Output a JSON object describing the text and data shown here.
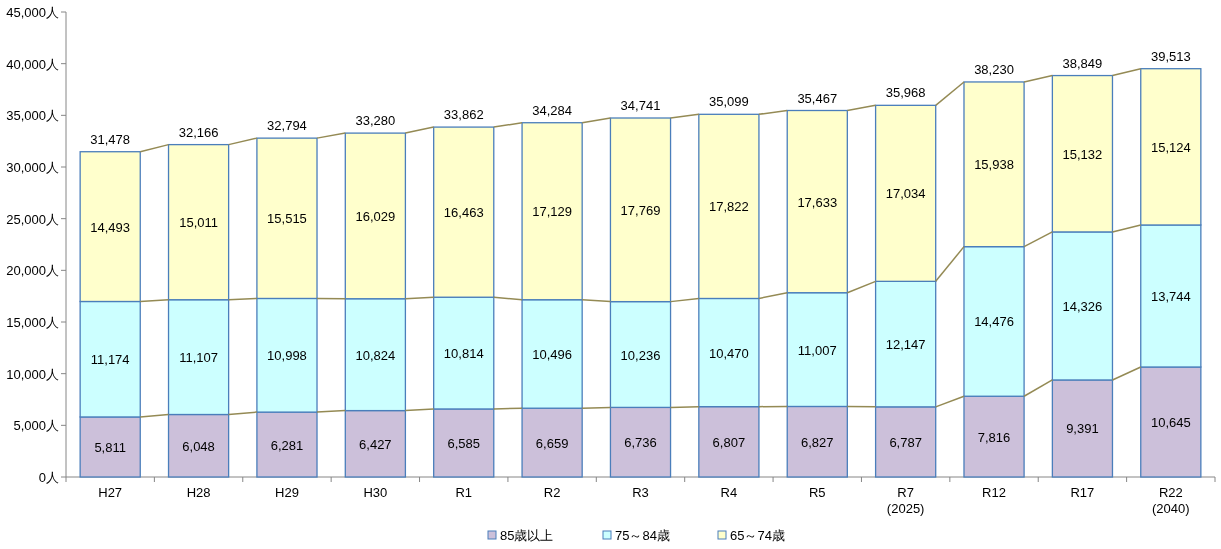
{
  "chart_data": {
    "type": "bar",
    "stacked": true,
    "legend": "bottom",
    "categories": [
      "H27",
      "H28",
      "H29",
      "H30",
      "R1",
      "R2",
      "R3",
      "R4",
      "R5",
      "R7\n(2025)",
      "R12",
      "R17",
      "R22\n(2040)"
    ],
    "series": [
      {
        "name": "85歳以上",
        "color": "#ccc0da",
        "values": [
          5811,
          6048,
          6281,
          6427,
          6585,
          6659,
          6736,
          6807,
          6827,
          6787,
          7816,
          9391,
          10645
        ],
        "value_labels": [
          "5,811",
          "6,048",
          "6,281",
          "6,427",
          "6,585",
          "6,659",
          "6,736",
          "6,807",
          "6,827",
          "6,787",
          "7,816",
          "9,391",
          "10,645"
        ]
      },
      {
        "name": "75～84歳",
        "color": "#ccffff",
        "values": [
          11174,
          11107,
          10998,
          10824,
          10814,
          10496,
          10236,
          10470,
          11007,
          12147,
          14476,
          14326,
          13744
        ],
        "value_labels": [
          "11,174",
          "11,107",
          "10,998",
          "10,824",
          "10,814",
          "10,496",
          "10,236",
          "10,470",
          "11,007",
          "12,147",
          "14,476",
          "14,326",
          "13,744"
        ]
      },
      {
        "name": "65～74歳",
        "color": "#ffffcc",
        "values": [
          14493,
          15011,
          15515,
          16029,
          16463,
          17129,
          17769,
          17822,
          17633,
          17034,
          15938,
          15132,
          15124
        ],
        "value_labels": [
          "14,493",
          "15,011",
          "15,515",
          "16,029",
          "16,463",
          "17,129",
          "17,769",
          "17,822",
          "17,633",
          "17,034",
          "15,938",
          "15,132",
          "15,124"
        ]
      }
    ],
    "totals": [
      "31,478",
      "32,166",
      "32,794",
      "33,280",
      "33,862",
      "34,284",
      "34,741",
      "35,099",
      "35,467",
      "35,968",
      "38,230",
      "38,849",
      "39,513"
    ],
    "ylim": [
      0,
      45000
    ],
    "yticks": [
      {
        "value": 0,
        "label": "0人"
      },
      {
        "value": 5000,
        "label": "5,000人"
      },
      {
        "value": 10000,
        "label": "10,000人"
      },
      {
        "value": 15000,
        "label": "15,000人"
      },
      {
        "value": 20000,
        "label": "20,000人"
      },
      {
        "value": 25000,
        "label": "25,000人"
      },
      {
        "value": 30000,
        "label": "30,000人"
      },
      {
        "value": 35000,
        "label": "35,000人"
      },
      {
        "value": 40000,
        "label": "40,000人"
      },
      {
        "value": 45000,
        "label": "45,000人"
      }
    ]
  }
}
